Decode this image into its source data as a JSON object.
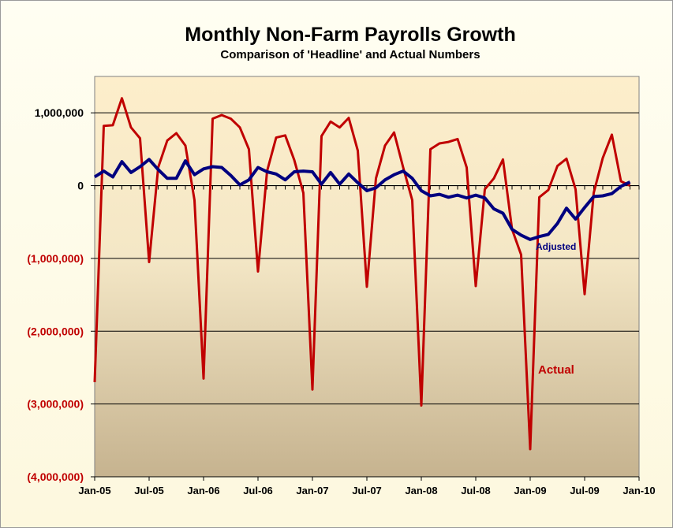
{
  "chart_data": {
    "type": "line",
    "title": "Monthly Non-Farm Payrolls Growth",
    "subtitle": "Comparison of 'Headline' and Actual Numbers",
    "xlabel": "",
    "ylabel": "",
    "ylim": [
      -4000000,
      1500000
    ],
    "x_tick_labels": [
      "Jan-05",
      "Jul-05",
      "Jan-06",
      "Jul-06",
      "Jan-07",
      "Jul-07",
      "Jan-08",
      "Jul-08",
      "Jan-09",
      "Jul-09",
      "Jan-10"
    ],
    "y_ticks": [
      {
        "value": 1000000,
        "label": "1,000,000"
      },
      {
        "value": 0,
        "label": "0"
      },
      {
        "value": -1000000,
        "label": "(1,000,000)"
      },
      {
        "value": -2000000,
        "label": "(2,000,000)"
      },
      {
        "value": -3000000,
        "label": "(3,000,000)"
      },
      {
        "value": -4000000,
        "label": "(4,000,000)"
      }
    ],
    "grid": true,
    "x_start": "2005-01",
    "x_end": "2010-01",
    "series": [
      {
        "name": "Actual",
        "color": "#c00000",
        "values": [
          -2700000,
          820000,
          830000,
          1200000,
          800000,
          650000,
          -1050000,
          250000,
          620000,
          720000,
          550000,
          -200000,
          -2650000,
          920000,
          970000,
          920000,
          800000,
          500000,
          -1180000,
          200000,
          660000,
          690000,
          350000,
          -100000,
          -2800000,
          680000,
          880000,
          800000,
          930000,
          480000,
          -1390000,
          100000,
          550000,
          730000,
          250000,
          -200000,
          -3020000,
          500000,
          580000,
          600000,
          640000,
          250000,
          -1380000,
          -50000,
          100000,
          360000,
          -600000,
          -950000,
          -3620000,
          -160000,
          -60000,
          270000,
          370000,
          -50000,
          -1490000,
          -100000,
          380000,
          700000,
          60000,
          0
        ]
      },
      {
        "name": "Adjusted",
        "color": "#00007f",
        "values": [
          120000,
          200000,
          120000,
          330000,
          180000,
          260000,
          360000,
          220000,
          100000,
          100000,
          340000,
          150000,
          230000,
          260000,
          250000,
          140000,
          10000,
          80000,
          250000,
          190000,
          160000,
          80000,
          190000,
          200000,
          190000,
          20000,
          180000,
          20000,
          160000,
          40000,
          -70000,
          -30000,
          80000,
          150000,
          200000,
          100000,
          -70000,
          -140000,
          -120000,
          -160000,
          -130000,
          -170000,
          -130000,
          -170000,
          -320000,
          -380000,
          -600000,
          -680000,
          -740000,
          -700000,
          -670000,
          -520000,
          -310000,
          -460000,
          -300000,
          -150000,
          -140000,
          -110000,
          -10000,
          50000
        ]
      }
    ],
    "annotations": [
      {
        "text": "Adjusted",
        "color": "#00007f"
      },
      {
        "text": "Actual",
        "color": "#c00000"
      }
    ],
    "colors": {
      "plot_top": "#fdeecb",
      "plot_bottom": "#c6b38f",
      "frame_bg": "#fffbe8",
      "positive_tick": "#000000",
      "negative_tick": "#c00000"
    }
  }
}
